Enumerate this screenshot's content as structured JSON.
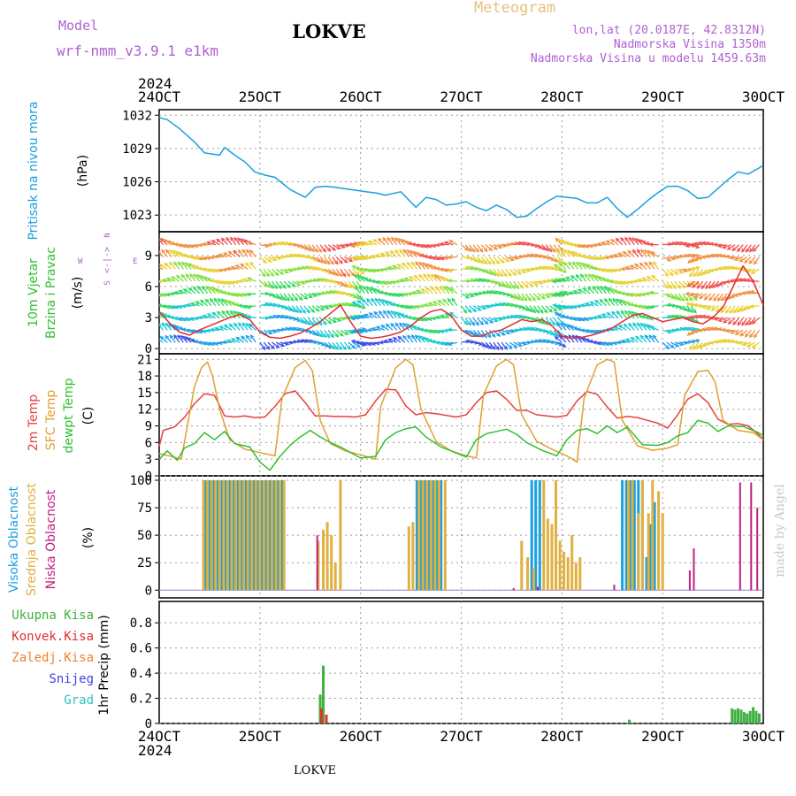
{
  "header": {
    "model_label": "Model",
    "model_name": "wrf-nmm_v3.9.1 e1km",
    "location": "LOKVE",
    "meteogram": "Meteogram",
    "lonlat": "lon,lat (20.0187E, 42.8312N)",
    "elevation": "Nadmorska Visina 1350m",
    "elevation_model": "Nadmorska Visina u modelu 1459.63m",
    "watermark": "made by Angel",
    "footer_location": "LOKVE"
  },
  "colors": {
    "pressure": "#1a9fe0",
    "wind_speed_10m": "#e03030",
    "wind_speed_alt": "#303030",
    "temp_2m": "#e84040",
    "sfc_temp": "#e0a030",
    "dewpoint": "#30c030",
    "cloud_high": "#1aa0e0",
    "cloud_mid": "#e0b040",
    "cloud_low": "#c02080",
    "precip_total": "#40b040",
    "precip_conv": "#e03030",
    "precip_snow": "#4040e0",
    "precip_freezing": "#f08030",
    "precip_hail": "#30c0c0",
    "title_purple": "#b060d0",
    "meteogram_gold": "#e8c080"
  },
  "chart_data": [
    {
      "type": "line",
      "panel": "pressure",
      "ylabel_1": "Pritisak na nivou mora",
      "ylabel_2": "(hPa)",
      "yticks": [
        1023,
        1026,
        1029,
        1032
      ],
      "ylim": [
        1021.5,
        1032.5
      ],
      "x_year_top": "2024",
      "x_year_bottom": "2024",
      "xticks": [
        "24OCT",
        "25OCT",
        "26OCT",
        "27OCT",
        "28OCT",
        "29OCT",
        "30OCT"
      ],
      "xlim_days": [
        0,
        6
      ],
      "grid": true,
      "series": [
        {
          "key": "pressure",
          "x": [
            0.0,
            0.08,
            0.2,
            0.35,
            0.45,
            0.6,
            0.65,
            0.75,
            0.85,
            0.95,
            1.05,
            1.15,
            1.3,
            1.45,
            1.55,
            1.65,
            1.75,
            1.9,
            2.05,
            2.15,
            2.25,
            2.4,
            2.55,
            2.65,
            2.75,
            2.85,
            2.95,
            3.05,
            3.15,
            3.25,
            3.35,
            3.45,
            3.55,
            3.65,
            3.75,
            3.85,
            3.95,
            4.05,
            4.15,
            4.25,
            4.35,
            4.45,
            4.55,
            4.65,
            4.75,
            4.85,
            4.95,
            5.05,
            5.15,
            5.25,
            5.35,
            5.45,
            5.55,
            5.65,
            5.75,
            5.85,
            5.95,
            6.0
          ],
          "values": [
            1031.8,
            1031.6,
            1030.8,
            1029.6,
            1028.6,
            1028.4,
            1029.1,
            1028.4,
            1027.8,
            1026.9,
            1026.6,
            1026.4,
            1025.3,
            1024.6,
            1025.5,
            1025.6,
            1025.5,
            1025.3,
            1025.1,
            1025.0,
            1024.8,
            1025.1,
            1023.7,
            1024.6,
            1024.4,
            1023.9,
            1024.0,
            1024.2,
            1023.7,
            1023.4,
            1023.9,
            1023.5,
            1022.8,
            1022.9,
            1023.6,
            1024.2,
            1024.7,
            1024.6,
            1024.5,
            1024.1,
            1024.1,
            1024.6,
            1023.6,
            1022.8,
            1023.5,
            1024.3,
            1025.0,
            1025.6,
            1025.6,
            1025.2,
            1024.5,
            1024.6,
            1025.4,
            1026.2,
            1026.9,
            1026.7,
            1027.2,
            1027.5
          ]
        }
      ]
    },
    {
      "type": "line",
      "panel": "wind",
      "ylabel_1": "10m Vjetar",
      "ylabel_2": "Brzina i Pravac",
      "ylabel_3": "(m/s)",
      "compass_n": "N",
      "compass_e": "E",
      "compass_w": "W",
      "compass_s": "S",
      "compass_mid": "<-|->",
      "yticks": [
        0,
        3,
        6,
        9
      ],
      "ylim": [
        -0.5,
        11.3
      ],
      "grid": true,
      "series": [
        {
          "key": "wind_speed_10m",
          "x": [
            0.0,
            0.1,
            0.2,
            0.3,
            0.4,
            0.5,
            0.6,
            0.7,
            0.8,
            0.9,
            1.0,
            1.1,
            1.2,
            1.3,
            1.4,
            1.5,
            1.6,
            1.7,
            1.8,
            1.9,
            2.0,
            2.1,
            2.2,
            2.3,
            2.4,
            2.5,
            2.6,
            2.7,
            2.8,
            2.9,
            3.0,
            3.1,
            3.2,
            3.3,
            3.4,
            3.5,
            3.6,
            3.7,
            3.8,
            3.9,
            4.0,
            4.1,
            4.2,
            4.3,
            4.4,
            4.5,
            4.6,
            4.7,
            4.8,
            4.9,
            5.0,
            5.1,
            5.2,
            5.3,
            5.4,
            5.5,
            5.6,
            5.7,
            5.8,
            5.9,
            6.0
          ],
          "values": [
            3.6,
            2.5,
            1.6,
            1.3,
            1.8,
            2.2,
            2.6,
            3.0,
            3.3,
            2.8,
            1.6,
            1.1,
            1.0,
            1.2,
            1.5,
            2.0,
            2.6,
            3.4,
            4.2,
            2.6,
            1.2,
            1.0,
            1.1,
            1.3,
            1.6,
            2.2,
            3.0,
            3.6,
            3.8,
            3.2,
            1.8,
            1.2,
            1.2,
            1.6,
            1.8,
            2.3,
            2.8,
            2.6,
            2.8,
            2.2,
            1.2,
            1.0,
            1.1,
            1.3,
            1.6,
            2.0,
            2.6,
            3.2,
            3.4,
            3.0,
            2.6,
            2.8,
            3.0,
            2.6,
            2.4,
            3.0,
            4.0,
            6.0,
            8.0,
            6.5,
            4.2
          ]
        }
      ]
    },
    {
      "type": "line",
      "panel": "temperature",
      "ylabel_1": "2m Temp",
      "ylabel_2": "SFC Temp",
      "ylabel_3": "dewpt Temp",
      "ylabel_4": "(C)",
      "yticks": [
        0,
        3,
        6,
        9,
        12,
        15,
        18,
        21
      ],
      "ylim": [
        0,
        22
      ],
      "grid": true,
      "series": [
        {
          "key": "temp_2m",
          "x": [
            0.0,
            0.04,
            0.15,
            0.25,
            0.35,
            0.45,
            0.55,
            0.65,
            0.75,
            0.85,
            0.95,
            1.05,
            1.15,
            1.25,
            1.35,
            1.45,
            1.55,
            1.65,
            1.75,
            1.85,
            1.95,
            2.05,
            2.15,
            2.25,
            2.35,
            2.45,
            2.55,
            2.65,
            2.75,
            2.85,
            2.95,
            3.05,
            3.15,
            3.25,
            3.35,
            3.45,
            3.55,
            3.65,
            3.75,
            3.85,
            3.95,
            4.05,
            4.15,
            4.25,
            4.35,
            4.45,
            4.55,
            4.65,
            4.75,
            4.85,
            4.95,
            5.05,
            5.15,
            5.25,
            5.35,
            5.45,
            5.55,
            5.65,
            5.75,
            5.85,
            5.95,
            6.0
          ],
          "values": [
            5.3,
            8.2,
            8.8,
            10.5,
            13.0,
            14.8,
            14.5,
            10.8,
            10.6,
            10.8,
            10.5,
            10.6,
            12.5,
            14.8,
            15.3,
            13.2,
            10.8,
            10.8,
            10.7,
            10.7,
            10.6,
            11.0,
            13.5,
            15.6,
            15.5,
            12.6,
            11.0,
            11.4,
            11.2,
            10.9,
            10.6,
            11.0,
            13.2,
            15.0,
            15.3,
            13.8,
            11.8,
            11.8,
            11.0,
            10.8,
            10.6,
            10.9,
            13.5,
            15.2,
            14.7,
            12.4,
            10.4,
            10.7,
            10.5,
            10.0,
            9.5,
            8.6,
            11.0,
            13.8,
            14.8,
            13.2,
            10.2,
            9.3,
            9.4,
            9.0,
            7.5,
            6.5
          ]
        },
        {
          "key": "sfc_temp",
          "x": [
            0.0,
            0.1,
            0.22,
            0.35,
            0.42,
            0.48,
            0.53,
            0.6,
            0.7,
            0.85,
            1.0,
            1.15,
            1.22,
            1.35,
            1.45,
            1.52,
            1.6,
            1.7,
            1.85,
            2.0,
            2.15,
            2.2,
            2.35,
            2.45,
            2.52,
            2.6,
            2.75,
            2.9,
            3.05,
            3.15,
            3.22,
            3.35,
            3.45,
            3.52,
            3.6,
            3.75,
            3.9,
            4.05,
            4.15,
            4.22,
            4.35,
            4.45,
            4.52,
            4.6,
            4.75,
            4.9,
            5.05,
            5.15,
            5.22,
            5.35,
            5.45,
            5.52,
            5.6,
            5.75,
            5.9,
            6.0
          ],
          "values": [
            4.0,
            3.6,
            3.0,
            16.0,
            19.5,
            20.5,
            18.0,
            12.0,
            6.5,
            4.8,
            4.2,
            3.6,
            14.0,
            19.5,
            20.8,
            19.0,
            10.0,
            5.8,
            4.5,
            3.8,
            3.0,
            12.5,
            19.5,
            21.0,
            20.0,
            12.0,
            6.2,
            4.5,
            3.6,
            3.2,
            14.5,
            19.8,
            21.0,
            20.0,
            11.0,
            6.2,
            4.8,
            3.6,
            2.5,
            14.0,
            20.0,
            21.0,
            20.5,
            10.0,
            5.4,
            4.6,
            5.0,
            5.6,
            14.5,
            18.8,
            19.0,
            17.0,
            10.0,
            8.2,
            7.8,
            6.5
          ]
        },
        {
          "key": "dewpoint",
          "x": [
            0.0,
            0.08,
            0.18,
            0.25,
            0.35,
            0.45,
            0.55,
            0.65,
            0.75,
            0.9,
            1.0,
            1.1,
            1.2,
            1.3,
            1.4,
            1.5,
            1.6,
            1.7,
            1.8,
            2.0,
            2.15,
            2.25,
            2.35,
            2.45,
            2.55,
            2.65,
            2.8,
            2.9,
            3.05,
            3.15,
            3.25,
            3.35,
            3.45,
            3.55,
            3.65,
            3.8,
            3.95,
            4.05,
            4.15,
            4.25,
            4.35,
            4.45,
            4.55,
            4.65,
            4.8,
            4.95,
            5.05,
            5.15,
            5.25,
            5.35,
            5.45,
            5.55,
            5.65,
            5.8,
            5.95,
            6.0
          ],
          "values": [
            3.0,
            4.5,
            2.8,
            5.0,
            5.8,
            7.8,
            6.5,
            8.0,
            5.8,
            5.2,
            2.5,
            1.0,
            3.5,
            5.5,
            7.0,
            8.2,
            7.0,
            6.0,
            5.2,
            3.2,
            3.5,
            6.5,
            7.8,
            8.5,
            8.8,
            7.0,
            5.2,
            4.5,
            3.4,
            6.5,
            7.6,
            8.0,
            8.4,
            7.5,
            6.0,
            4.6,
            3.6,
            6.5,
            8.2,
            8.5,
            7.6,
            9.0,
            7.8,
            8.8,
            5.6,
            5.5,
            6.0,
            7.2,
            7.8,
            10.0,
            9.5,
            8.0,
            9.0,
            8.9,
            7.8,
            7.2
          ]
        }
      ]
    },
    {
      "type": "bar",
      "panel": "cloud",
      "ylabel_1": "Visoka Oblacnost",
      "ylabel_2": "Srednja Oblacnost",
      "ylabel_3": "Niska Oblacnost",
      "ylabel_4": "(%)",
      "yticks": [
        0,
        25,
        50,
        75,
        100
      ],
      "ylim": [
        -7,
        104
      ],
      "grid": true,
      "series": [
        {
          "key": "cloud_high",
          "x": [
            0.46,
            0.5,
            0.54,
            0.58,
            0.62,
            0.66,
            0.7,
            0.74,
            0.78,
            0.82,
            0.86,
            0.9,
            0.94,
            0.98,
            1.02,
            1.06,
            1.1,
            1.14,
            1.18,
            1.22,
            2.56,
            2.6,
            2.64,
            2.68,
            2.72,
            2.76,
            2.8,
            3.7,
            3.74,
            3.78,
            4.6,
            4.64,
            4.68,
            4.72,
            4.76,
            4.8,
            4.84,
            4.88,
            4.92
          ],
          "values": [
            100,
            100,
            100,
            100,
            100,
            100,
            100,
            100,
            100,
            100,
            100,
            100,
            100,
            100,
            100,
            100,
            100,
            100,
            100,
            100,
            100,
            100,
            100,
            100,
            100,
            100,
            100,
            100,
            100,
            100,
            100,
            100,
            100,
            100,
            100,
            100,
            30,
            60,
            80
          ]
        },
        {
          "key": "cloud_mid",
          "x": [
            0.44,
            0.48,
            0.52,
            0.56,
            0.6,
            0.64,
            0.68,
            0.72,
            0.76,
            0.8,
            0.84,
            0.88,
            0.92,
            0.96,
            1.0,
            1.04,
            1.08,
            1.12,
            1.16,
            1.2,
            1.24,
            1.58,
            1.63,
            1.67,
            1.71,
            1.75,
            1.8,
            2.48,
            2.52,
            2.58,
            2.62,
            2.66,
            2.7,
            2.74,
            2.78,
            2.84,
            3.6,
            3.66,
            3.72,
            3.82,
            3.86,
            3.9,
            3.94,
            3.98,
            4.02,
            4.06,
            4.1,
            4.14,
            4.18,
            4.66,
            4.7,
            4.76,
            4.8,
            4.86,
            4.9,
            4.96,
            5.0
          ],
          "values": [
            100,
            100,
            100,
            100,
            100,
            100,
            100,
            100,
            100,
            100,
            100,
            100,
            100,
            100,
            100,
            100,
            100,
            100,
            100,
            100,
            100,
            45,
            55,
            62,
            50,
            25,
            100,
            58,
            62,
            100,
            100,
            100,
            100,
            100,
            100,
            100,
            45,
            30,
            20,
            100,
            65,
            60,
            100,
            45,
            35,
            30,
            50,
            25,
            30,
            100,
            100,
            70,
            100,
            70,
            100,
            90,
            70
          ]
        },
        {
          "key": "cloud_low",
          "x": [
            1.57,
            3.52,
            3.76,
            4.52,
            5.27,
            5.31,
            5.77,
            5.88,
            5.94
          ],
          "values": [
            50,
            2,
            3,
            5,
            18,
            38,
            98,
            98,
            75
          ]
        }
      ]
    },
    {
      "type": "bar",
      "panel": "precipitation",
      "ylabel_1": "1hr Precip (mm)",
      "legend": [
        "Ukupna Kisa",
        "Konvek.Kisa",
        "Zaledj.Kisa",
        "Snijeg",
        "Grad"
      ],
      "yticks": [
        0,
        0.2,
        0.4,
        0.6,
        0.8
      ],
      "ylim": [
        0,
        0.97
      ],
      "grid": true,
      "series": [
        {
          "key": "precip_total",
          "x": [
            1.6,
            1.63,
            4.67,
            5.69,
            5.72,
            5.75,
            5.78,
            5.81,
            5.84,
            5.87,
            5.9,
            5.93,
            5.96
          ],
          "values": [
            0.23,
            0.46,
            0.03,
            0.12,
            0.11,
            0.12,
            0.11,
            0.09,
            0.08,
            0.1,
            0.13,
            0.1,
            0.08
          ]
        },
        {
          "key": "precip_conv",
          "x": [
            1.61,
            1.66
          ],
          "values": [
            0.12,
            0.07
          ]
        }
      ]
    }
  ]
}
